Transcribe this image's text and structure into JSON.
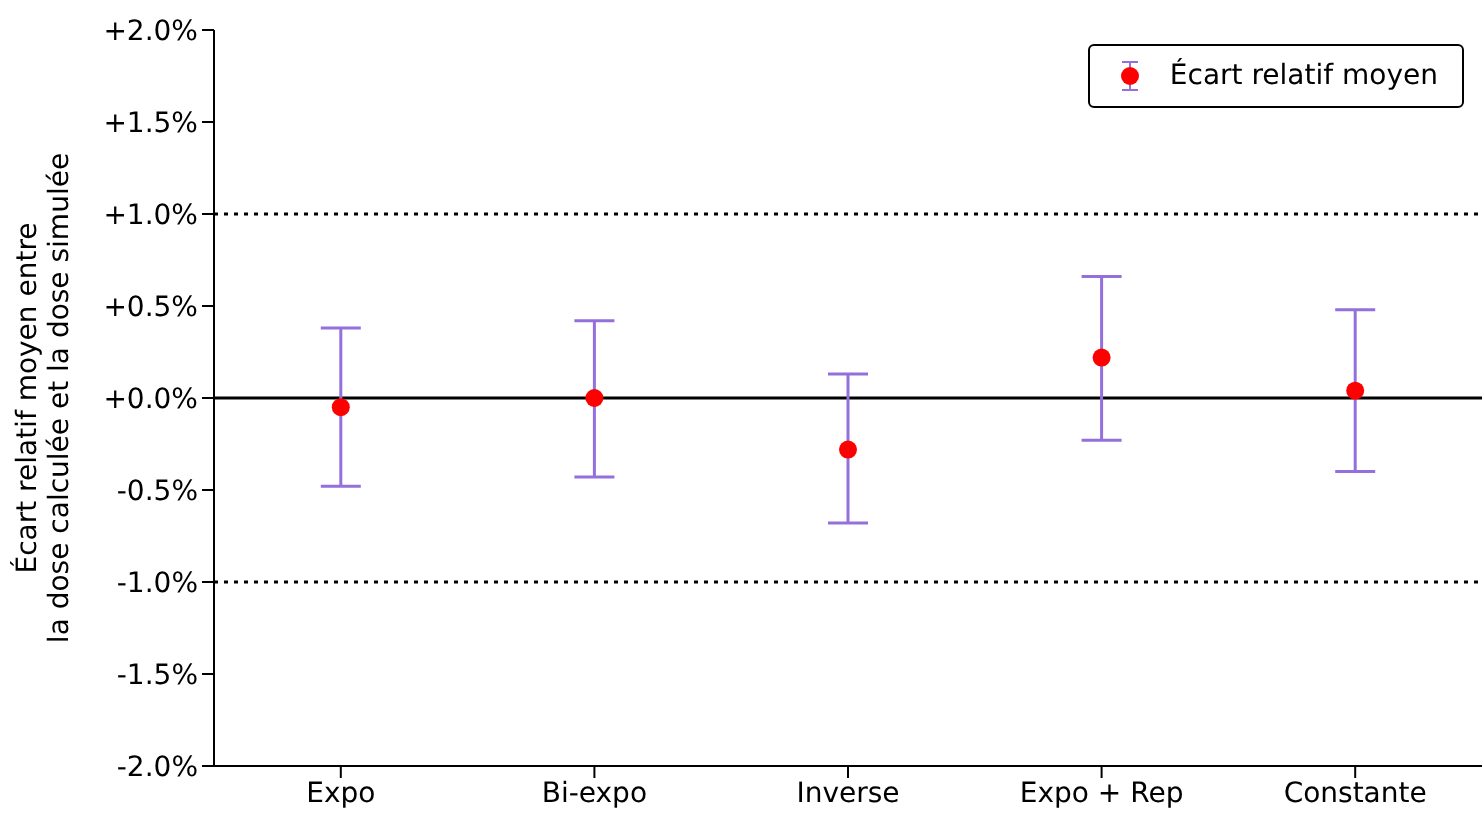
{
  "chart_data": {
    "type": "scatter",
    "ylabel": "Écart relatif moyen entre\nla dose calculée et la dose simulée",
    "categories": [
      "Expo",
      "Bi-expo",
      "Inverse",
      "Expo + Rep",
      "Constante"
    ],
    "series": [
      {
        "name": "Écart relatif moyen",
        "color": "#ff0000",
        "values": [
          -0.05,
          0,
          -0.28,
          0.22,
          0.04
        ],
        "errors": [
          [
            -0.48,
            0.38
          ],
          [
            -0.43,
            0.42
          ],
          [
            -0.68,
            0.13
          ],
          [
            -0.23,
            0.66
          ],
          [
            -0.4,
            0.48
          ]
        ]
      }
    ],
    "ylim": [
      -2,
      2
    ],
    "yticks": [
      {
        "value": -2,
        "label": "-2.0%"
      },
      {
        "value": -1.5,
        "label": "-1.5%"
      },
      {
        "value": -1,
        "label": "-1.0%"
      },
      {
        "value": -0.5,
        "label": "-0.5%"
      },
      {
        "value": 0,
        "label": "+0.0%"
      },
      {
        "value": 0.5,
        "label": "+0.5%"
      },
      {
        "value": 1,
        "label": "+1.0%"
      },
      {
        "value": 1.5,
        "label": "+1.5%"
      },
      {
        "value": 2,
        "label": "+2.0%"
      }
    ],
    "ref_lines": [
      {
        "axis": "y",
        "value": 0,
        "color": "#000000",
        "line_style": "solid"
      },
      {
        "axis": "y",
        "value": 1,
        "color": "#000000",
        "line_style": "dotted"
      },
      {
        "axis": "y",
        "value": -1,
        "color": "#000000",
        "line_style": "dotted"
      }
    ],
    "legend": "top right",
    "marker": "circle",
    "grid": false
  }
}
